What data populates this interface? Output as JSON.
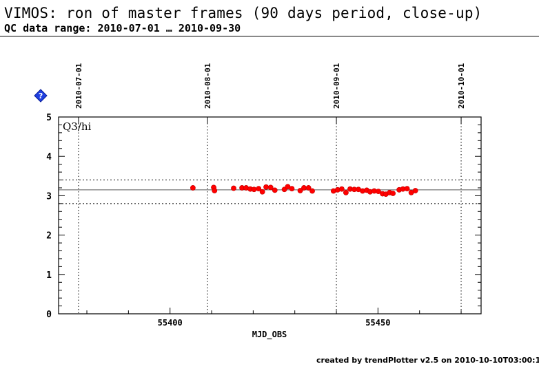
{
  "header": {
    "title": "VIMOS: ron of master frames (90 days period, close-up)",
    "subtitle": "QC data range: 2010-07-01 … 2010-09-30"
  },
  "footer": {
    "credit": "created by trendPlotter v2.5 on 2010-10-10T03:00:12"
  },
  "icons": {
    "help": "help-diamond-icon"
  },
  "colors": {
    "points": "#ff0000",
    "axes": "#000000"
  },
  "chart_data": {
    "type": "scatter",
    "title": "",
    "xlabel": "MJD_OBS",
    "ylabel": "",
    "panel_label": "Q3/hi",
    "xlim": [
      55373.2,
      55474.8
    ],
    "ylim": [
      0,
      5
    ],
    "x_ticks": [
      55400,
      55450
    ],
    "y_ticks": [
      0,
      1,
      2,
      3,
      4,
      5
    ],
    "top_date_ticks": [
      {
        "label": "2010-07-01",
        "mjd": 55378
      },
      {
        "label": "2010-08-01",
        "mjd": 55409
      },
      {
        "label": "2010-09-01",
        "mjd": 55440
      },
      {
        "label": "2010-10-01",
        "mjd": 55470
      }
    ],
    "reference_lines": {
      "mean": 3.15,
      "upper": 3.4,
      "lower": 2.8
    },
    "grid": "vertical dotted at date ticks",
    "series": [
      {
        "points": [
          [
            55405.5,
            3.2
          ],
          [
            55410.5,
            3.21
          ],
          [
            55410.7,
            3.13
          ],
          [
            55415.3,
            3.19
          ],
          [
            55417.3,
            3.2
          ],
          [
            55418.3,
            3.2
          ],
          [
            55419.3,
            3.17
          ],
          [
            55420.2,
            3.16
          ],
          [
            55421.3,
            3.18
          ],
          [
            55422.2,
            3.1
          ],
          [
            55423.1,
            3.22
          ],
          [
            55424.2,
            3.21
          ],
          [
            55425.2,
            3.14
          ],
          [
            55427.5,
            3.16
          ],
          [
            55428.3,
            3.23
          ],
          [
            55429.3,
            3.18
          ],
          [
            55431.3,
            3.13
          ],
          [
            55432.2,
            3.2
          ],
          [
            55433.3,
            3.2
          ],
          [
            55434.2,
            3.12
          ],
          [
            55439.3,
            3.12
          ],
          [
            55440.3,
            3.15
          ],
          [
            55441.3,
            3.17
          ],
          [
            55442.3,
            3.08
          ],
          [
            55443.3,
            3.17
          ],
          [
            55444.3,
            3.16
          ],
          [
            55445.3,
            3.16
          ],
          [
            55446.3,
            3.12
          ],
          [
            55447.3,
            3.14
          ],
          [
            55448.1,
            3.1
          ],
          [
            55449.1,
            3.12
          ],
          [
            55450.1,
            3.11
          ],
          [
            55451.1,
            3.05
          ],
          [
            55451.9,
            3.04
          ],
          [
            55452.8,
            3.08
          ],
          [
            55453.6,
            3.06
          ],
          [
            55455.1,
            3.15
          ],
          [
            55456.0,
            3.17
          ],
          [
            55457.0,
            3.18
          ],
          [
            55458.0,
            3.08
          ],
          [
            55459.0,
            3.13
          ]
        ]
      }
    ]
  }
}
